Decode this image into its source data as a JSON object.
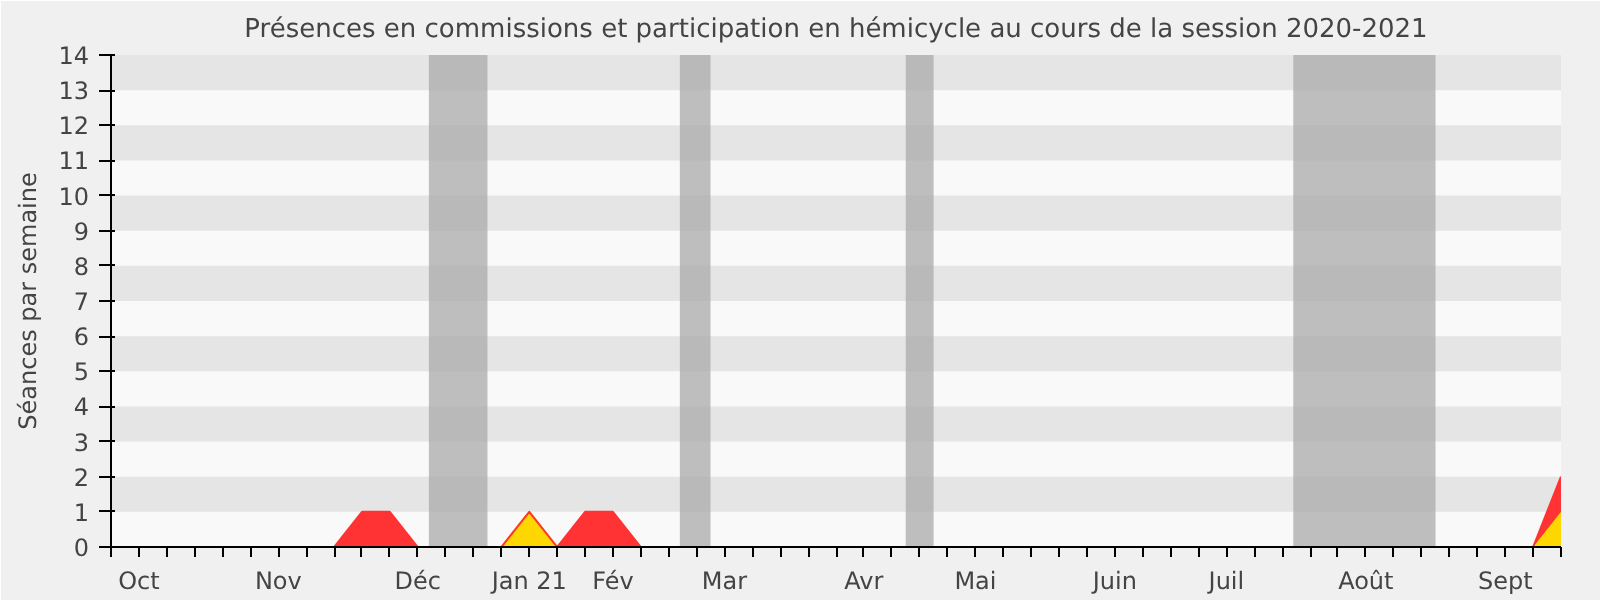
{
  "chart_data": {
    "type": "area",
    "stacked": true,
    "title": "Présences en commissions et participation en hémicycle au cours de la session 2020-2021",
    "ylabel": "Séances par semaine",
    "categories": [
      null,
      "Oct",
      null,
      null,
      null,
      null,
      "Nov",
      null,
      null,
      null,
      null,
      "Déc",
      null,
      null,
      null,
      "Jan 21",
      null,
      null,
      "Fév",
      null,
      null,
      null,
      "Mar",
      null,
      null,
      null,
      null,
      "Avr",
      null,
      null,
      null,
      "Mai",
      null,
      null,
      null,
      null,
      "Juin",
      null,
      null,
      null,
      "Juil",
      null,
      null,
      null,
      null,
      "Août",
      null,
      null,
      null,
      null,
      "Sept",
      null,
      null
    ],
    "series": [
      {
        "color": "#ffd700",
        "values": [
          0,
          0,
          0,
          0,
          0,
          0,
          0,
          0,
          0,
          0,
          0,
          0,
          0,
          0,
          0,
          1,
          0,
          0,
          0,
          0,
          0,
          0,
          0,
          0,
          0,
          0,
          0,
          0,
          0,
          0,
          0,
          0,
          0,
          0,
          0,
          0,
          0,
          0,
          0,
          0,
          0,
          0,
          0,
          0,
          0,
          0,
          0,
          0,
          0,
          0,
          0,
          0,
          1
        ]
      },
      {
        "color": "#ff3333",
        "values": [
          0,
          0,
          0,
          0,
          0,
          0,
          0,
          0,
          0,
          1,
          1,
          0,
          0,
          0,
          0,
          0,
          0,
          1,
          1,
          0,
          0,
          0,
          0,
          0,
          0,
          0,
          0,
          0,
          0,
          0,
          0,
          0,
          0,
          0,
          0,
          0,
          0,
          0,
          0,
          0,
          0,
          0,
          0,
          0,
          0,
          0,
          0,
          0,
          0,
          0,
          0,
          0,
          1
        ]
      }
    ],
    "ylim": [
      0,
      14
    ],
    "yticks": [
      0,
      1,
      2,
      3,
      4,
      5,
      6,
      7,
      8,
      9,
      10,
      11,
      12,
      13,
      14
    ]
  }
}
